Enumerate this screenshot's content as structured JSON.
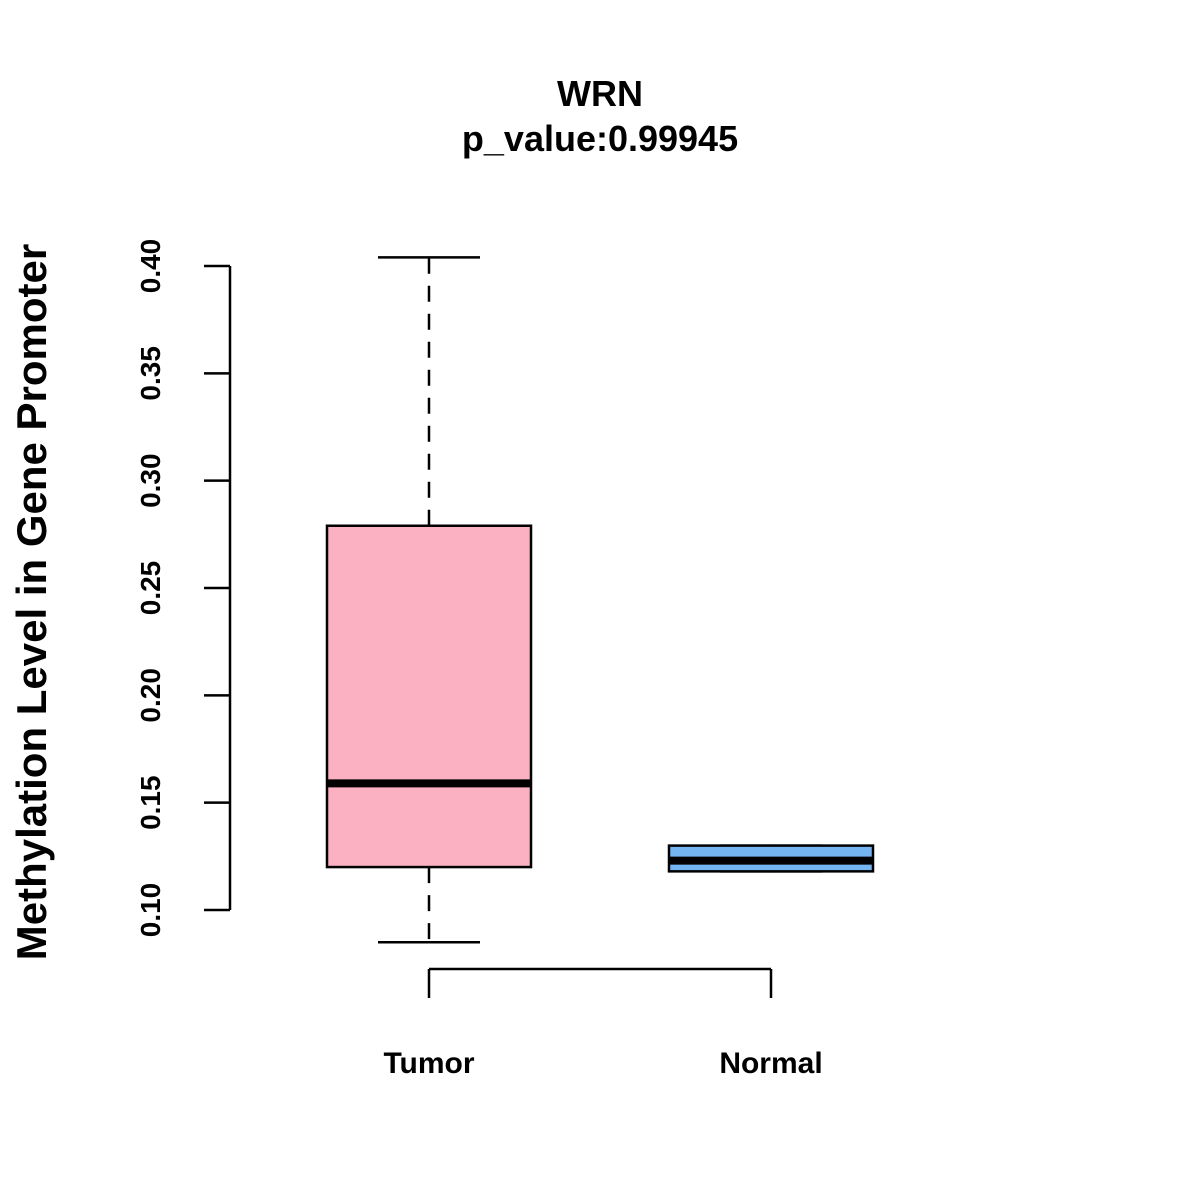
{
  "chart_data": {
    "type": "boxplot",
    "title": "WRN",
    "subtitle": "p_value:0.99945",
    "xlabel": "",
    "ylabel": "Methylation Level in Gene Promoter",
    "ylim": [
      0.1,
      0.4
    ],
    "yticks": [
      0.1,
      0.15,
      0.2,
      0.25,
      0.3,
      0.35,
      0.4
    ],
    "ytick_labels": [
      "0.10",
      "0.15",
      "0.20",
      "0.25",
      "0.30",
      "0.35",
      "0.40"
    ],
    "categories": [
      "Tumor",
      "Normal"
    ],
    "boxes": [
      {
        "name": "Tumor",
        "whisker_low": 0.085,
        "q1": 0.12,
        "median": 0.159,
        "q3": 0.279,
        "whisker_high": 0.404,
        "fill": "#FCB1C3"
      },
      {
        "name": "Normal",
        "whisker_low": 0.118,
        "q1": 0.118,
        "median": 0.123,
        "q3": 0.13,
        "whisker_high": 0.13,
        "fill": "#74B4F0"
      }
    ],
    "grid": false
  }
}
